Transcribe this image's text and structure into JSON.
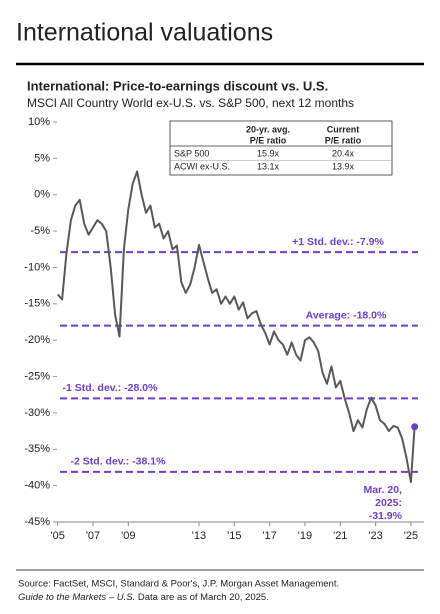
{
  "page_title": "International valuations",
  "chart_data": {
    "type": "line",
    "title": "International: Price-to-earnings discount vs. U.S.",
    "subtitle": "MSCI All Country World ex-U.S. vs. S&P 500, next 12 months",
    "color": "#595959",
    "x": [
      2005,
      2005.25,
      2005.5,
      2005.75,
      2006,
      2006.25,
      2006.5,
      2006.75,
      2007,
      2007.25,
      2007.5,
      2007.75,
      2008,
      2008.25,
      2008.5,
      2008.75,
      2009,
      2009.25,
      2009.5,
      2009.75,
      2010,
      2010.25,
      2010.5,
      2010.75,
      2011,
      2011.25,
      2011.5,
      2011.75,
      2012,
      2012.25,
      2012.5,
      2012.75,
      2013,
      2013.25,
      2013.5,
      2013.75,
      2014,
      2014.25,
      2014.5,
      2014.75,
      2015,
      2015.25,
      2015.5,
      2015.75,
      2016,
      2016.25,
      2016.5,
      2016.75,
      2017,
      2017.25,
      2017.5,
      2017.75,
      2018,
      2018.25,
      2018.5,
      2018.75,
      2019,
      2019.25,
      2019.5,
      2019.75,
      2020,
      2020.25,
      2020.5,
      2020.75,
      2021,
      2021.25,
      2021.5,
      2021.75,
      2022,
      2022.25,
      2022.5,
      2022.75,
      2023,
      2023.25,
      2023.5,
      2023.75,
      2024,
      2024.25,
      2024.5,
      2024.75,
      2025,
      2025.21
    ],
    "values": [
      -13.7,
      -14.4,
      -8,
      -3.5,
      -1.5,
      -0.7,
      -4,
      -5.5,
      -4.5,
      -3.5,
      -4,
      -5,
      -10,
      -16.5,
      -19.5,
      -7.5,
      -2,
      1.5,
      3.2,
      0,
      -2.5,
      -1.5,
      -4.5,
      -4,
      -6,
      -5,
      -7.5,
      -7,
      -12,
      -13.5,
      -12.4,
      -10,
      -6.9,
      -9.2,
      -11.5,
      -13.5,
      -13,
      -15,
      -14,
      -15,
      -14,
      -15.8,
      -14.8,
      -17,
      -16.3,
      -16,
      -17.8,
      -19,
      -20.6,
      -18.8,
      -20,
      -20.6,
      -22,
      -20.3,
      -22,
      -22.8,
      -20,
      -19.6,
      -20.3,
      -21.5,
      -24.5,
      -26,
      -23.6,
      -26.5,
      -25.6,
      -28,
      -30,
      -32.5,
      -31,
      -32,
      -29.5,
      -27.9,
      -29,
      -31,
      -31.5,
      -32.5,
      -31.8,
      -32,
      -33.5,
      -36.2,
      -39.5,
      -31.9
    ],
    "xlim": [
      2004,
      2025.4
    ],
    "ylim": [
      -45,
      10
    ],
    "xticks": [
      {
        "value": 2005,
        "label": "'05"
      },
      {
        "value": 2007,
        "label": "'07"
      },
      {
        "value": 2009,
        "label": "'09"
      },
      {
        "value": 2013,
        "label": "'13"
      },
      {
        "value": 2015,
        "label": "'15"
      },
      {
        "value": 2017,
        "label": "'17"
      },
      {
        "value": 2019,
        "label": "'19"
      },
      {
        "value": 2021,
        "label": "'21"
      },
      {
        "value": 2023,
        "label": "'23"
      },
      {
        "value": 2025,
        "label": "'25"
      }
    ],
    "yticks": [
      {
        "value": 10,
        "label": "10%"
      },
      {
        "value": 5,
        "label": "5%"
      },
      {
        "value": 0,
        "label": "0%"
      },
      {
        "value": -5,
        "label": "-5%"
      },
      {
        "value": -10,
        "label": "-10%"
      },
      {
        "value": -15,
        "label": "-15%"
      },
      {
        "value": -20,
        "label": "-20%"
      },
      {
        "value": -25,
        "label": "-25%"
      },
      {
        "value": -30,
        "label": "-30%"
      },
      {
        "value": -35,
        "label": "-35%"
      },
      {
        "value": -40,
        "label": "-40%"
      },
      {
        "value": -45,
        "label": "-45%"
      }
    ],
    "reference_color": "#6f3fc4",
    "reference_lines": [
      {
        "value": -7.9,
        "label": "+1 Std. dev.: -7.9%"
      },
      {
        "value": -18,
        "label": "Average: -18.0%"
      },
      {
        "value": -28,
        "label": "-1 Std. dev.: -28.0%"
      },
      {
        "value": -38.1,
        "label": "-2 Std. dev.: -38.1%"
      }
    ],
    "annotation": [
      "Mar. 20,",
      "2025:",
      "-31.9%"
    ],
    "table": {
      "header": [
        [
          "20-yr. avg.",
          "P/E ratio"
        ],
        [
          "Current",
          "P/E ratio"
        ]
      ],
      "rows": [
        [
          "S&P 500",
          "15.9x",
          "20.4x"
        ],
        [
          "ACWI ex-U.S.",
          "13.1x",
          "13.9x"
        ]
      ]
    }
  },
  "footer": {
    "source": "Source: FactSet, MSCI, Standard & Poor's, J.P. Morgan Asset Management.",
    "guide": "Guide to the Markets – U.S.",
    "note": " Data are as of March 20, 2025."
  }
}
